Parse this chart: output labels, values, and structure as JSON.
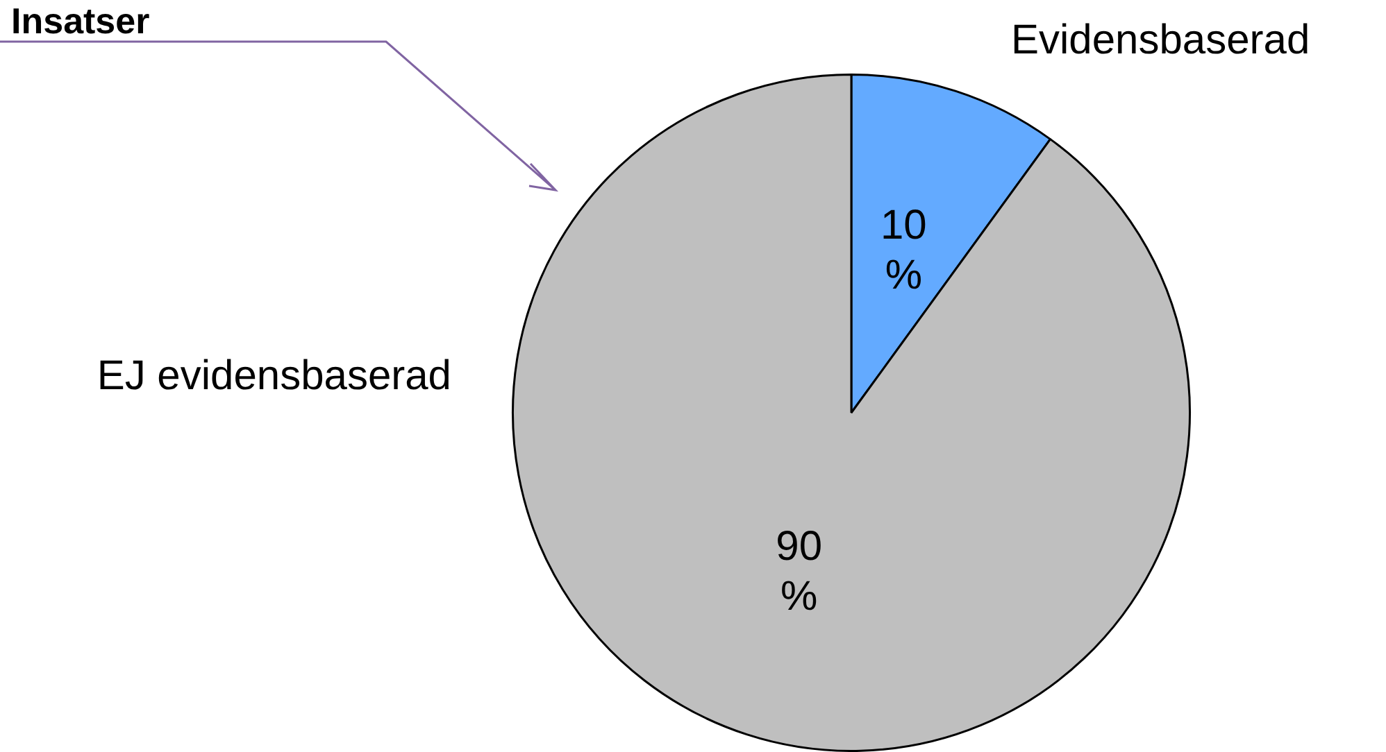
{
  "chart_data": {
    "type": "pie",
    "categories": [
      "Evidensbaserad",
      "EJ evidensbaserad"
    ],
    "values": [
      10,
      90
    ],
    "colors": [
      "#63aaff",
      "#bfbfbf"
    ],
    "value_labels": [
      "10 %",
      "90 %"
    ],
    "legend": false,
    "annotations": [
      "Insatser"
    ]
  }
}
